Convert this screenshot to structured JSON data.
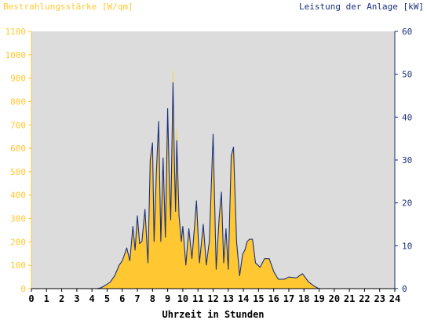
{
  "chart_data": {
    "type": "area",
    "title_left": "Bestrahlungsstärke [W/qm]",
    "title_right": "Leistung der Anlage [kW]",
    "xlabel": "Uhrzeit in Stunden",
    "x_ticks": [
      "0",
      "1",
      "2",
      "3",
      "4",
      "5",
      "6",
      "7",
      "8",
      "9",
      "10",
      "11",
      "12",
      "13",
      "14",
      "15",
      "16",
      "17",
      "18",
      "19",
      "20",
      "21",
      "22",
      "23",
      "24"
    ],
    "y_left_ticks": [
      "0",
      "100",
      "200",
      "300",
      "400",
      "500",
      "600",
      "700",
      "800",
      "900",
      "1000",
      "1100"
    ],
    "y_right_ticks": [
      "0",
      "10",
      "20",
      "30",
      "40",
      "50",
      "60"
    ],
    "xlim": [
      0,
      24
    ],
    "ylim_left": [
      0,
      1100
    ],
    "ylim_right": [
      0,
      60
    ],
    "grid": false,
    "colors": {
      "plot_background": "#dcdcdc",
      "irradiance_fill": "#ffc832",
      "power_line": "#1a2f7a",
      "left_axis_text": "#ffc832",
      "right_axis_text": "#1a2f7a",
      "axis": "#000000"
    },
    "series": [
      {
        "name": "Bestrahlungsstärke",
        "axis": "left",
        "style": "area",
        "x": [
          0,
          4.3,
          4.6,
          4.9,
          5.2,
          5.5,
          5.8,
          6.0,
          6.3,
          6.5,
          6.7,
          6.85,
          7.0,
          7.15,
          7.3,
          7.5,
          7.7,
          7.85,
          8.0,
          8.1,
          8.25,
          8.4,
          8.55,
          8.7,
          8.85,
          9.0,
          9.1,
          9.2,
          9.35,
          9.45,
          9.52,
          9.6,
          9.75,
          9.9,
          10.0,
          10.2,
          10.4,
          10.6,
          10.75,
          10.9,
          11.1,
          11.35,
          11.55,
          11.75,
          12.0,
          12.2,
          12.4,
          12.55,
          12.7,
          12.85,
          13.0,
          13.2,
          13.35,
          13.55,
          13.75,
          13.95,
          14.1,
          14.25,
          14.4,
          14.6,
          14.8,
          15.1,
          15.4,
          15.7,
          16.0,
          16.3,
          16.7,
          17.0,
          17.5,
          17.9,
          18.3,
          18.7,
          19.0,
          19.4,
          19.7,
          20.0,
          20.2,
          24
        ],
        "values": [
          0,
          0,
          4,
          15,
          28,
          55,
          100,
          115,
          175,
          115,
          255,
          165,
          280,
          190,
          200,
          330,
          110,
          520,
          620,
          195,
          500,
          710,
          200,
          560,
          215,
          770,
          480,
          300,
          930,
          520,
          330,
          690,
          310,
          200,
          270,
          100,
          260,
          125,
          250,
          370,
          110,
          270,
          100,
          200,
          560,
          80,
          300,
          400,
          110,
          250,
          80,
          560,
          600,
          200,
          55,
          150,
          165,
          200,
          215,
          210,
          110,
          90,
          130,
          130,
          70,
          40,
          40,
          50,
          45,
          65,
          30,
          10,
          0,
          0,
          0,
          0,
          0,
          0
        ]
      },
      {
        "name": "Leistung der Anlage",
        "axis": "right",
        "style": "line",
        "x": [
          0,
          4.3,
          4.6,
          4.9,
          5.2,
          5.5,
          5.8,
          6.0,
          6.3,
          6.5,
          6.7,
          6.85,
          7.0,
          7.15,
          7.3,
          7.5,
          7.7,
          7.85,
          8.0,
          8.1,
          8.25,
          8.4,
          8.55,
          8.7,
          8.85,
          9.0,
          9.1,
          9.2,
          9.35,
          9.45,
          9.52,
          9.6,
          9.75,
          9.9,
          10.0,
          10.2,
          10.4,
          10.6,
          10.75,
          10.9,
          11.1,
          11.35,
          11.55,
          11.75,
          12.0,
          12.2,
          12.4,
          12.55,
          12.7,
          12.85,
          13.0,
          13.2,
          13.35,
          13.55,
          13.75,
          13.95,
          14.1,
          14.25,
          14.4,
          14.6,
          14.8,
          15.1,
          15.4,
          15.7,
          16.0,
          16.3,
          16.7,
          17.0,
          17.5,
          17.9,
          18.3,
          18.7,
          19.0,
          19.4,
          19.7,
          20.0,
          20.2,
          24
        ],
        "values": [
          0,
          0,
          0.2,
          0.8,
          1.5,
          3.0,
          5.5,
          6.5,
          9.5,
          6.5,
          14.5,
          9.0,
          17.0,
          10.5,
          11.0,
          18.5,
          6.0,
          30.0,
          34.0,
          11.0,
          27.0,
          39.0,
          11.0,
          30.5,
          12.0,
          42.0,
          26.0,
          16.0,
          48.0,
          28.5,
          18.0,
          34.5,
          17.0,
          11.0,
          14.5,
          5.5,
          14.0,
          7.0,
          13.5,
          20.5,
          6.0,
          15.0,
          5.5,
          11.0,
          36.0,
          4.5,
          16.5,
          22.5,
          6.0,
          14.0,
          4.5,
          31.0,
          33.0,
          11.0,
          3.0,
          8.0,
          9.0,
          11.0,
          11.5,
          11.5,
          6.0,
          5.0,
          7.0,
          7.0,
          4.0,
          2.2,
          2.2,
          2.7,
          2.5,
          3.5,
          1.6,
          0.5,
          0,
          0,
          0,
          0,
          0,
          0
        ]
      }
    ]
  }
}
